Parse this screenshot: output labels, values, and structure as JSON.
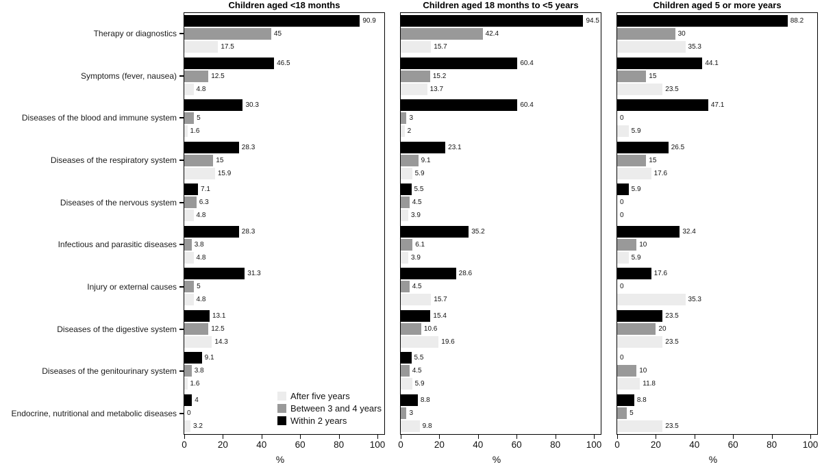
{
  "chart_data": {
    "type": "bar",
    "orientation": "horizontal",
    "grid": false,
    "xlabel": "%",
    "xlim": [
      0,
      100
    ],
    "xticks": [
      0,
      20,
      40,
      60,
      80,
      100
    ],
    "categories": [
      "Therapy or diagnostics",
      "Symptoms (fever, nausea)",
      "Diseases of the blood and immune system",
      "Diseases of the respiratory system",
      "Diseases of the nervous system",
      "Infectious and parasitic diseases",
      "Injury or external causes",
      "Diseases of the digestive system",
      "Diseases of the genitourinary system",
      "Endocrine, nutritional and metabolic diseases"
    ],
    "series_meta": [
      {
        "name": "Within 2 years",
        "color": "#000000"
      },
      {
        "name": "Between 3 and 4 years",
        "color": "#999999"
      },
      {
        "name": "After five years",
        "color": "#ececec"
      }
    ],
    "panels": [
      {
        "title": "Children aged <18 months",
        "series": [
          {
            "name": "Within 2 years",
            "values": [
              90.9,
              46.5,
              30.3,
              28.3,
              7.1,
              28.3,
              31.3,
              13.1,
              9.1,
              4
            ]
          },
          {
            "name": "Between 3 and 4 years",
            "values": [
              45,
              12.5,
              5,
              15,
              6.3,
              3.8,
              5,
              12.5,
              3.8,
              0
            ]
          },
          {
            "name": "After five years",
            "values": [
              17.5,
              4.8,
              1.6,
              15.9,
              4.8,
              4.8,
              4.8,
              14.3,
              1.6,
              3.2
            ]
          }
        ]
      },
      {
        "title": "Children aged 18 months to <5 years",
        "series": [
          {
            "name": "Within 2 years",
            "values": [
              94.5,
              60.4,
              60.4,
              23.1,
              5.5,
              35.2,
              28.6,
              15.4,
              5.5,
              8.8
            ]
          },
          {
            "name": "Between 3 and 4 years",
            "values": [
              42.4,
              15.2,
              3,
              9.1,
              4.5,
              6.1,
              4.5,
              10.6,
              4.5,
              3
            ]
          },
          {
            "name": "After five years",
            "values": [
              15.7,
              13.7,
              2,
              5.9,
              3.9,
              3.9,
              15.7,
              19.6,
              5.9,
              9.8
            ]
          }
        ]
      },
      {
        "title": "Children aged 5 or more years",
        "series": [
          {
            "name": "Within 2 years",
            "values": [
              88.2,
              44.1,
              47.1,
              26.5,
              5.9,
              32.4,
              17.6,
              23.5,
              0,
              8.8
            ]
          },
          {
            "name": "Between 3 and 4 years",
            "values": [
              30,
              15,
              0,
              15,
              0,
              10,
              0,
              20,
              10,
              5
            ]
          },
          {
            "name": "After five years",
            "values": [
              35.3,
              23.5,
              5.9,
              17.6,
              0,
              5.9,
              35.3,
              23.5,
              11.8,
              23.5
            ]
          }
        ]
      }
    ],
    "legend": {
      "position": "bottom-right-of-first-panel",
      "entries": [
        {
          "label": "After five years",
          "color": "#ececec"
        },
        {
          "label": "Between 3 and 4 years",
          "color": "#999999"
        },
        {
          "label": "Within 2 years",
          "color": "#000000"
        }
      ]
    }
  }
}
